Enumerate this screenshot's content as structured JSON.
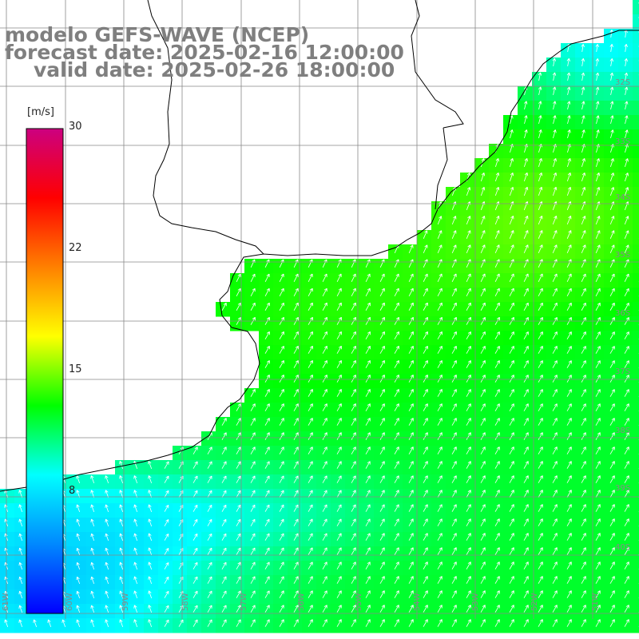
{
  "title": {
    "line1": "modelo GEFS-WAVE (NCEP)",
    "line2": "forecast date: 2025-02-16 12:00:00",
    "line3": "valid date: 2025-02-26 18:00:00"
  },
  "colorbar": {
    "unit": "[m/s]",
    "ticks": [
      "30",
      "22",
      "15",
      "8"
    ],
    "tick_values": [
      30,
      22,
      15,
      8
    ],
    "range": [
      0,
      30
    ],
    "colors": [
      "#0000ff",
      "#0088ff",
      "#00ffff",
      "#00ff00",
      "#ffff00",
      "#ff8000",
      "#ff0000",
      "#cc0080"
    ]
  },
  "axes": {
    "lon_labels": [
      "61W",
      "60W",
      "59W",
      "58W",
      "57W",
      "56W",
      "55W",
      "54W",
      "53W",
      "52W",
      "51W"
    ],
    "lat_labels": [
      "32S",
      "33S",
      "34S",
      "35S",
      "36S",
      "37S",
      "38S",
      "39S",
      "40S",
      "41S"
    ],
    "lon_range": [
      -61.2,
      -50.3
    ],
    "lat_range": [
      -31.0,
      -41.6
    ]
  },
  "field": {
    "variable": "wind speed",
    "direction": "arrows pointing NE in south/offshore; N-NW toward the coast in the north-east",
    "magnitude_regions": [
      {
        "region": "offshore north-east",
        "speed_ms": 12
      },
      {
        "region": "central plateau of field",
        "speed_ms": 11.5
      },
      {
        "region": "south-east",
        "speed_ms": 10
      },
      {
        "region": "south-west coast",
        "speed_ms": 6
      }
    ]
  }
}
